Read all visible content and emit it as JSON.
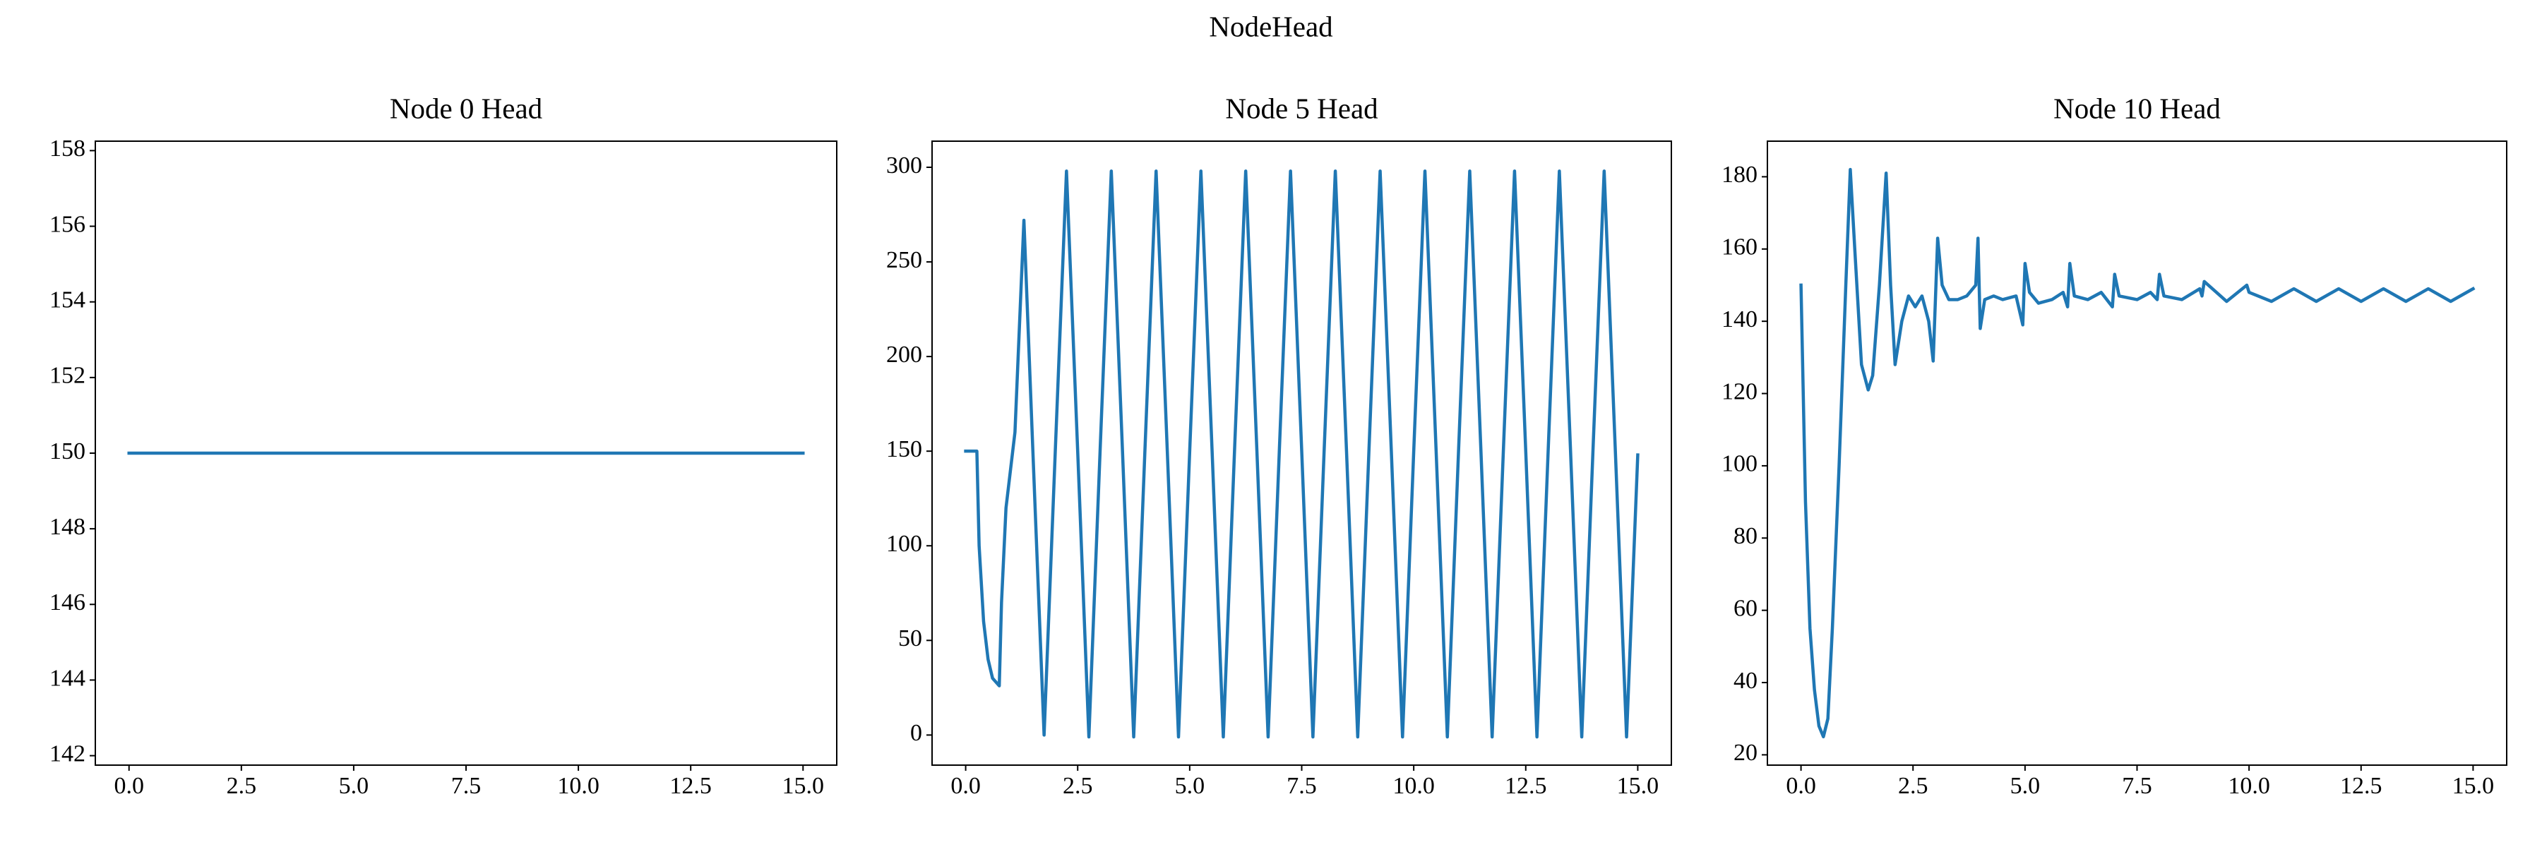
{
  "title": "NodeHead",
  "chart_data": [
    {
      "type": "line",
      "title": "Node 0 Head",
      "color": "#1f77b4",
      "x": [
        0,
        15
      ],
      "values": [
        150,
        150
      ],
      "xlim": [
        -0.75,
        15.75
      ],
      "xticks": [
        {
          "value": 0,
          "label": "0.0"
        },
        {
          "value": 2.5,
          "label": "2.5"
        },
        {
          "value": 5,
          "label": "5.0"
        },
        {
          "value": 7.5,
          "label": "7.5"
        },
        {
          "value": 10,
          "label": "10.0"
        },
        {
          "value": 12.5,
          "label": "12.5"
        },
        {
          "value": 15,
          "label": "15.0"
        }
      ],
      "ylim": [
        141.75,
        158.25
      ],
      "yticks": [
        142,
        144,
        146,
        148,
        150,
        152,
        154,
        156,
        158
      ]
    },
    {
      "type": "line",
      "title": "Node 5 Head",
      "color": "#1f77b4",
      "x": [
        0,
        0.25,
        0.3,
        0.4,
        0.5,
        0.6,
        0.75,
        0.8,
        0.9,
        1.1,
        1.3,
        1.5,
        1.75,
        2.0,
        2.25,
        2.5,
        2.75,
        3.0,
        3.25,
        3.5,
        3.75,
        4.0,
        4.25,
        4.5,
        4.75,
        5.0,
        5.25,
        5.5,
        5.75,
        6.0,
        6.25,
        6.5,
        6.75,
        7.0,
        7.25,
        7.5,
        7.75,
        8.0,
        8.25,
        8.5,
        8.75,
        9.0,
        9.25,
        9.5,
        9.75,
        10.0,
        10.25,
        10.5,
        10.75,
        11.0,
        11.25,
        11.5,
        11.75,
        12.0,
        12.25,
        12.5,
        12.75,
        13.0,
        13.25,
        13.5,
        13.75,
        14.0,
        14.25,
        14.5,
        14.75,
        15.0
      ],
      "values": [
        150,
        150,
        100,
        60,
        40,
        30,
        26,
        70,
        120,
        160,
        272,
        150,
        0,
        150,
        298,
        150,
        -1,
        150,
        298,
        150,
        -1,
        150,
        298,
        150,
        -1,
        150,
        298,
        150,
        -1,
        150,
        298,
        150,
        -1,
        150,
        298,
        150,
        -1,
        150,
        298,
        150,
        -1,
        150,
        298,
        150,
        -1,
        150,
        298,
        150,
        -1,
        150,
        298,
        150,
        -1,
        150,
        298,
        150,
        -1,
        150,
        298,
        150,
        -1,
        150,
        298,
        150,
        -1,
        148
      ],
      "xlim": [
        -0.75,
        15.75
      ],
      "xticks": [
        {
          "value": 0,
          "label": "0.0"
        },
        {
          "value": 2.5,
          "label": "2.5"
        },
        {
          "value": 5,
          "label": "5.0"
        },
        {
          "value": 7.5,
          "label": "7.5"
        },
        {
          "value": 10,
          "label": "10.0"
        },
        {
          "value": 12.5,
          "label": "12.5"
        },
        {
          "value": 15,
          "label": "15.0"
        }
      ],
      "ylim": [
        -15.9,
        313.8
      ],
      "yticks": [
        0,
        50,
        100,
        150,
        200,
        250,
        300
      ]
    },
    {
      "type": "line",
      "title": "Node 10 Head",
      "color": "#1f77b4",
      "x": [
        0,
        0.1,
        0.2,
        0.3,
        0.4,
        0.5,
        0.6,
        0.7,
        0.85,
        1.0,
        1.1,
        1.2,
        1.35,
        1.5,
        1.6,
        1.75,
        1.9,
        2.0,
        2.1,
        2.25,
        2.4,
        2.55,
        2.7,
        2.85,
        2.95,
        3.05,
        3.15,
        3.3,
        3.5,
        3.7,
        3.9,
        3.95,
        4.0,
        4.1,
        4.3,
        4.5,
        4.8,
        4.95,
        5.0,
        5.1,
        5.3,
        5.6,
        5.85,
        5.95,
        6.0,
        6.1,
        6.4,
        6.7,
        6.95,
        7.0,
        7.1,
        7.5,
        7.8,
        7.95,
        8.0,
        8.1,
        8.5,
        8.9,
        8.95,
        9.0,
        9.5,
        9.95,
        10.0,
        10.5,
        11.0,
        11.5,
        12.0,
        12.5,
        13.0,
        13.5,
        14.0,
        14.5,
        15.0
      ],
      "values": [
        150,
        90,
        55,
        38,
        28,
        25,
        30,
        55,
        100,
        150,
        182,
        160,
        128,
        121,
        125,
        150,
        181,
        150,
        128,
        140,
        147,
        144,
        147,
        140,
        129,
        163,
        150,
        146,
        146,
        147,
        150,
        163,
        138,
        146,
        147,
        146,
        147,
        139,
        156,
        148,
        145,
        146,
        148,
        144,
        156,
        147,
        146,
        148,
        144,
        153,
        147,
        146,
        148,
        146,
        153,
        147,
        146,
        149,
        147,
        151,
        145.5,
        150,
        148,
        145.5,
        149,
        145.5,
        149,
        145.5,
        149,
        145.5,
        149,
        145.5,
        149
      ],
      "xlim": [
        -0.75,
        15.75
      ],
      "xticks": [
        {
          "value": 0,
          "label": "0.0"
        },
        {
          "value": 2.5,
          "label": "2.5"
        },
        {
          "value": 5,
          "label": "5.0"
        },
        {
          "value": 7.5,
          "label": "7.5"
        },
        {
          "value": 10,
          "label": "10.0"
        },
        {
          "value": 12.5,
          "label": "12.5"
        },
        {
          "value": 15,
          "label": "15.0"
        }
      ],
      "ylim": [
        17.15,
        189.85
      ],
      "yticks": [
        20,
        40,
        60,
        80,
        100,
        120,
        140,
        160,
        180
      ]
    }
  ]
}
